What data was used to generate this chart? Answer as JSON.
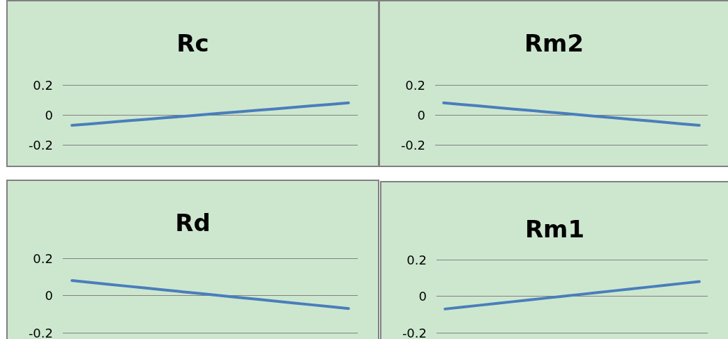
{
  "chart_data": [
    {
      "type": "line",
      "title": "Rc",
      "categories": [
        null,
        null,
        null,
        null,
        null,
        null,
        null,
        null,
        null,
        null,
        null,
        null,
        null,
        null,
        null,
        null
      ],
      "values": [
        -0.07,
        -0.06,
        -0.05,
        -0.04,
        -0.03,
        -0.02,
        -0.01,
        0,
        0.01,
        0.02,
        0.03,
        0.04,
        0.05,
        0.06,
        0.07,
        0.08
      ],
      "color": "#4a7ebb",
      "ylim": [
        -0.2,
        0.2
      ],
      "yticks": [
        -0.2,
        0,
        0.2
      ],
      "grid": "y",
      "tick_labels": "y",
      "marker": "none"
    },
    {
      "type": "line",
      "title": "Rm2",
      "categories": [
        null,
        null,
        null,
        null,
        null,
        null,
        null,
        null,
        null,
        null,
        null,
        null,
        null,
        null,
        null,
        null
      ],
      "values": [
        0.08,
        0.07,
        0.06,
        0.05,
        0.04,
        0.03,
        0.02,
        0.01,
        0,
        -0.01,
        -0.02,
        -0.03,
        -0.04,
        -0.05,
        -0.06,
        -0.07
      ],
      "color": "#4a7ebb",
      "ylim": [
        -0.2,
        0.2
      ],
      "yticks": [
        -0.2,
        0,
        0.2
      ],
      "grid": "y",
      "tick_labels": "y",
      "marker": "none"
    },
    {
      "type": "line",
      "title": "Rd",
      "categories": [
        null,
        null,
        null,
        null,
        null,
        null,
        null,
        null,
        null,
        null,
        null,
        null,
        null,
        null,
        null,
        null
      ],
      "values": [
        0.08,
        0.07,
        0.06,
        0.05,
        0.04,
        0.03,
        0.02,
        0.01,
        0,
        -0.01,
        -0.02,
        -0.03,
        -0.04,
        -0.05,
        -0.06,
        -0.07
      ],
      "color": "#4a7ebb",
      "ylim": [
        -0.2,
        0.2
      ],
      "yticks": [
        -0.2,
        0,
        0.2
      ],
      "grid": "y",
      "tick_labels": "y",
      "marker": "none"
    },
    {
      "type": "line",
      "title": "Rm1",
      "categories": [
        null,
        null,
        null,
        null,
        null,
        null,
        null,
        null,
        null,
        null,
        null,
        null,
        null,
        null,
        null,
        null
      ],
      "values": [
        -0.07,
        -0.06,
        -0.05,
        -0.04,
        -0.03,
        -0.02,
        -0.01,
        0,
        0.01,
        0.02,
        0.03,
        0.04,
        0.05,
        0.06,
        0.07,
        0.08
      ],
      "color": "#4a7ebb",
      "ylim": [
        -0.2,
        0.2
      ],
      "yticks": [
        -0.2,
        0,
        0.2
      ],
      "grid": "y",
      "tick_labels": "y",
      "marker": "none"
    }
  ]
}
